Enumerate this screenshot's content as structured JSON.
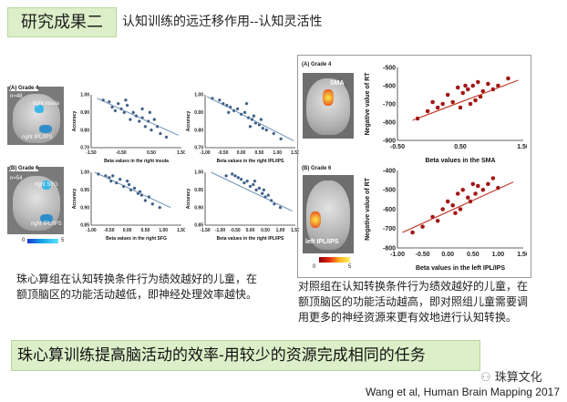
{
  "header": {
    "section_title": "研究成果二",
    "subtitle": "认知训练的远迁移作用--认知灵活性"
  },
  "left_panel": {
    "grade4": {
      "label": "(A) Grade 4",
      "n": "n=48",
      "region1": "right insula",
      "region2": "right IPL/IPS",
      "plot1_xlabel": "Beta values in the right insula",
      "plot2_xlabel": "Beta values in the right IPL/IPS",
      "ylabel": "Accuracy"
    },
    "grade6": {
      "label": "(B) Grade 6",
      "n": "n=54",
      "region1": "right SFG",
      "region2": "right IPL/IPS",
      "plot1_xlabel": "Beta values in the right SFG",
      "plot2_xlabel": "Beta values in the right IPL/IPS",
      "ylabel": "Accuracy"
    },
    "colorbar_min": "0",
    "colorbar_max": "5",
    "caption": "珠心算组在认知转换条件行为绩效越好的儿童，在额顶脑区的功能活动越低，即神经处理效率越快。"
  },
  "right_panel": {
    "grade4": {
      "label": "(A) Grade 4",
      "region": "SMA",
      "xlabel": "Beta values in the SMA",
      "ylabel": "Negative value of RT"
    },
    "grade6": {
      "label": "(B) Grade 6",
      "region": "left IPL/IPS",
      "xlabel": "Beta values in the left IPL/IPS",
      "ylabel": "Negative value of RT"
    },
    "colorbar_min": "0",
    "colorbar_max": "5",
    "caption": "对照组在认知转换条件行为绩效越好的儿童，在额顶脑区的功能活动越高，即对照组儿童需要调用更多的神经资源来更有效地进行认知转换。"
  },
  "conclusion": "珠心算训练提高脑活动的效率-用较少的资源完成相同的任务",
  "citation": "Wang et al, Human Brain Mapping 2017",
  "watermark": "珠算文化",
  "chart_data": [
    {
      "type": "scatter",
      "id": "g4-insula",
      "xlabel": "Beta values in the right insula",
      "ylabel": "Accuracy",
      "xticks": [
        "-1.50",
        "-0.50",
        "0.50",
        "1.50"
      ],
      "yticks": [
        "1.00",
        "0.90",
        "0.80",
        "0.70"
      ],
      "xlim": [
        -1.5,
        1.5
      ],
      "ylim": [
        0.7,
        1.0
      ],
      "x": [
        -1.1,
        -0.9,
        -0.8,
        -0.6,
        -0.5,
        -0.4,
        -0.3,
        -0.2,
        -0.1,
        0.0,
        0.1,
        0.2,
        0.3,
        0.4,
        0.5,
        0.6,
        0.8,
        1.0,
        -0.7,
        0.2,
        0.7,
        -0.35,
        0.45
      ],
      "y": [
        0.97,
        0.96,
        0.93,
        0.95,
        0.92,
        0.9,
        0.94,
        0.86,
        0.9,
        0.88,
        0.85,
        0.87,
        0.82,
        0.85,
        0.8,
        0.86,
        0.78,
        0.76,
        0.91,
        0.92,
        0.82,
        0.97,
        0.9
      ],
      "fit": [
        [
          -1.3,
          0.98
        ],
        [
          1.4,
          0.77
        ]
      ]
    },
    {
      "type": "scatter",
      "id": "g4-ipl",
      "xlabel": "Beta values in the right IPL/IPS",
      "ylabel": "Accuracy",
      "xticks": [
        "-1.00",
        "-0.50",
        "0.00",
        "0.50",
        "1.00",
        "1.50"
      ],
      "yticks": [
        "1.00",
        "0.90",
        "0.80",
        "0.70"
      ],
      "xlim": [
        -1.0,
        1.5
      ],
      "ylim": [
        0.7,
        1.0
      ],
      "x": [
        -0.8,
        -0.6,
        -0.5,
        -0.4,
        -0.3,
        -0.2,
        -0.1,
        0.0,
        0.1,
        0.2,
        0.3,
        0.35,
        0.4,
        0.5,
        0.6,
        0.7,
        0.9,
        1.1,
        -0.35,
        0.15,
        0.55,
        0.25
      ],
      "y": [
        0.98,
        0.97,
        0.95,
        0.94,
        0.93,
        0.91,
        0.92,
        0.89,
        0.9,
        0.87,
        0.86,
        0.88,
        0.84,
        0.83,
        0.81,
        0.8,
        0.78,
        0.75,
        0.9,
        0.95,
        0.86,
        0.82
      ],
      "fit": [
        [
          -0.95,
          0.99
        ],
        [
          1.45,
          0.74
        ]
      ]
    },
    {
      "type": "scatter",
      "id": "g6-sfg",
      "xlabel": "Beta values in the right SFG",
      "ylabel": "Accuracy",
      "xticks": [
        "-1.00",
        "-0.50",
        "0.00",
        "0.50",
        "1.00",
        "1.50"
      ],
      "yticks": [
        "1.00",
        "0.95",
        "0.90",
        "0.85"
      ],
      "xlim": [
        -1.0,
        1.5
      ],
      "ylim": [
        0.85,
        1.0
      ],
      "x": [
        -0.8,
        -0.6,
        -0.5,
        -0.4,
        -0.3,
        -0.2,
        -0.1,
        0.0,
        0.1,
        0.2,
        0.3,
        0.4,
        0.5,
        0.6,
        0.7,
        -0.45,
        0.05,
        0.35,
        0.9
      ],
      "y": [
        0.995,
        0.99,
        0.985,
        0.99,
        0.97,
        0.98,
        0.96,
        0.975,
        0.95,
        0.955,
        0.94,
        0.935,
        0.92,
        0.93,
        0.91,
        0.975,
        0.965,
        0.945,
        0.9
      ],
      "fit": [
        [
          -0.9,
          1.0
        ],
        [
          1.2,
          0.9
        ]
      ]
    },
    {
      "type": "scatter",
      "id": "g6-ipl",
      "xlabel": "Beta values in the right IPL/IPS",
      "ylabel": "Accuracy",
      "xticks": [
        "-1.50",
        "-1.00",
        "-0.50",
        "0.00",
        "0.50",
        "1.00",
        "1.50"
      ],
      "yticks": [
        "1.00",
        "0.95",
        "0.90",
        "0.85"
      ],
      "xlim": [
        -1.5,
        1.5
      ],
      "ylim": [
        0.85,
        1.0
      ],
      "x": [
        -0.8,
        -0.6,
        -0.4,
        -0.3,
        -0.2,
        -0.1,
        0.0,
        0.1,
        0.2,
        0.3,
        0.4,
        0.5,
        0.6,
        0.7,
        0.8,
        -0.5,
        0.15,
        0.45,
        1.0
      ],
      "y": [
        0.99,
        0.995,
        0.985,
        0.98,
        0.97,
        0.975,
        0.96,
        0.965,
        0.95,
        0.955,
        0.94,
        0.93,
        0.935,
        0.92,
        0.91,
        0.99,
        0.975,
        0.95,
        0.9
      ],
      "fit": [
        [
          -1.3,
          1.0
        ],
        [
          1.4,
          0.89
        ]
      ]
    },
    {
      "type": "scatter",
      "id": "ctrl-g4-sma",
      "xlabel": "Beta values in the SMA",
      "ylabel": "Negative value of RT",
      "xticks": [
        "-0.50",
        "0.50",
        "1.50"
      ],
      "yticks": [
        "-500",
        "-600",
        "-700",
        "-800",
        "-900"
      ],
      "xlim": [
        -1.0,
        1.5
      ],
      "ylim": [
        -900,
        -500
      ],
      "x": [
        -0.6,
        -0.4,
        -0.2,
        -0.1,
        0.0,
        0.1,
        0.2,
        0.3,
        0.4,
        0.5,
        0.55,
        0.6,
        0.7,
        0.8,
        0.9,
        1.0,
        1.2,
        0.25,
        0.45,
        0.65,
        0.35,
        -0.3
      ],
      "y": [
        -780,
        -740,
        -720,
        -700,
        -650,
        -690,
        -610,
        -640,
        -620,
        -600,
        -680,
        -580,
        -630,
        -590,
        -620,
        -600,
        -560,
        -720,
        -700,
        -660,
        -600,
        -690
      ],
      "fit": [
        [
          -0.7,
          -790
        ],
        [
          1.4,
          -570
        ]
      ]
    },
    {
      "type": "scatter",
      "id": "ctrl-g6-ipl",
      "xlabel": "Beta values in the left IPL/IPS",
      "ylabel": "Negative value of RT",
      "xticks": [
        "-1.00",
        "-0.50",
        "0.00",
        "0.50",
        "1.00",
        "1.50"
      ],
      "yticks": [
        "-400",
        "-500",
        "-600",
        "-700",
        "-800"
      ],
      "xlim": [
        -1.0,
        1.5
      ],
      "ylim": [
        -800,
        -400
      ],
      "x": [
        -0.7,
        -0.5,
        -0.3,
        -0.2,
        -0.1,
        0.0,
        0.1,
        0.2,
        0.25,
        0.3,
        0.4,
        0.5,
        0.55,
        0.6,
        0.7,
        0.8,
        0.9,
        1.0,
        0.15,
        0.45
      ],
      "y": [
        -720,
        -690,
        -640,
        -660,
        -600,
        -560,
        -580,
        -520,
        -600,
        -500,
        -540,
        -470,
        -520,
        -480,
        -500,
        -470,
        -440,
        -490,
        -620,
        -560
      ],
      "fit": [
        [
          -0.9,
          -720
        ],
        [
          1.3,
          -460
        ]
      ]
    }
  ]
}
